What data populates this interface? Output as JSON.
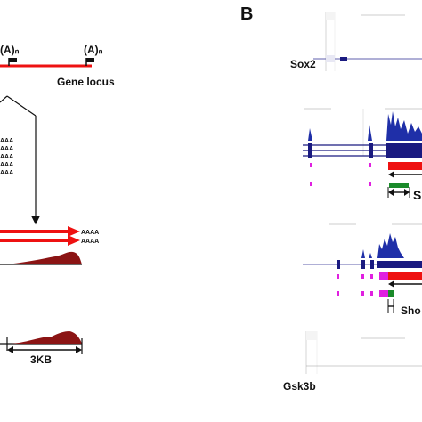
{
  "panel_b_label": "B",
  "panel_a": {
    "polya_label_1": "(A)ₙ",
    "polya_label_2": "(A)ₙ",
    "gene_locus_label": "Gene locus",
    "transcript_tails": [
      "AAA",
      "AAA",
      "AAA",
      "AAA",
      "AAA"
    ],
    "aaaa_top": "AAAA",
    "aaaa_bottom": "AAAA",
    "scale_label": "3KB"
  },
  "panel_b": {
    "sox2_label": "Sox2",
    "gsk3b_label": "Gsk3b",
    "short_label": "Sho",
    "s_label": "S"
  },
  "colors": {
    "red": "#ee1111",
    "dark_red": "#8b1414",
    "navy": "#1a1a80",
    "blue_coverage": "#1f2fa8",
    "magenta": "#e020e0",
    "green": "#1a8a2a"
  }
}
